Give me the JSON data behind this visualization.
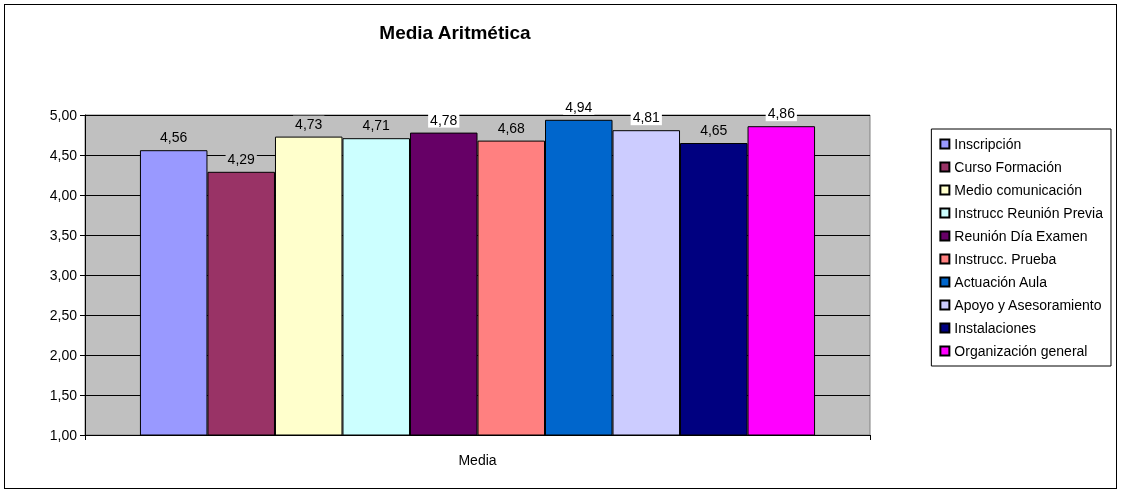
{
  "chart_data": {
    "type": "bar",
    "title": "Media Aritmética",
    "categories": [
      "Media"
    ],
    "series": [
      {
        "name": "Inscripción",
        "color": "#9999ff",
        "values": [
          4.56
        ],
        "value_labels": [
          "4,56"
        ]
      },
      {
        "name": "Curso Formación",
        "color": "#993366",
        "values": [
          4.29
        ],
        "value_labels": [
          "4,29"
        ]
      },
      {
        "name": "Medio comunicación",
        "color": "#ffffcc",
        "values": [
          4.73
        ],
        "value_labels": [
          "4,73"
        ]
      },
      {
        "name": "Instrucc Reunión Previa",
        "color": "#ccffff",
        "values": [
          4.71
        ],
        "value_labels": [
          "4,71"
        ]
      },
      {
        "name": "Reunión Día Examen",
        "color": "#660066",
        "values": [
          4.78
        ],
        "value_labels": [
          "4,78"
        ]
      },
      {
        "name": "Instrucc. Prueba",
        "color": "#ff8080",
        "values": [
          4.68
        ],
        "value_labels": [
          "4,68"
        ]
      },
      {
        "name": "Actuación Aula",
        "color": "#0066cc",
        "values": [
          4.94
        ],
        "value_labels": [
          "4,94"
        ]
      },
      {
        "name": "Apoyo y Asesoramiento",
        "color": "#ccccff",
        "values": [
          4.81
        ],
        "value_labels": [
          "4,81"
        ]
      },
      {
        "name": "Instalaciones",
        "color": "#000080",
        "values": [
          4.65
        ],
        "value_labels": [
          "4,65"
        ]
      },
      {
        "name": "Organización general",
        "color": "#ff00ff",
        "values": [
          4.86
        ],
        "value_labels": [
          "4,86"
        ]
      }
    ],
    "ylim": [
      1,
      5
    ],
    "yticks": [
      {
        "value": 1,
        "label": "1,00"
      },
      {
        "value": 1.5,
        "label": "1,50"
      },
      {
        "value": 2,
        "label": "2,00"
      },
      {
        "value": 2.5,
        "label": "2,50"
      },
      {
        "value": 3,
        "label": "3,00"
      },
      {
        "value": 3.5,
        "label": "3,50"
      },
      {
        "value": 4,
        "label": "4,00"
      },
      {
        "value": 4.5,
        "label": "4,50"
      },
      {
        "value": 5,
        "label": "5,00"
      }
    ],
    "grid": "y",
    "legend": "right"
  }
}
